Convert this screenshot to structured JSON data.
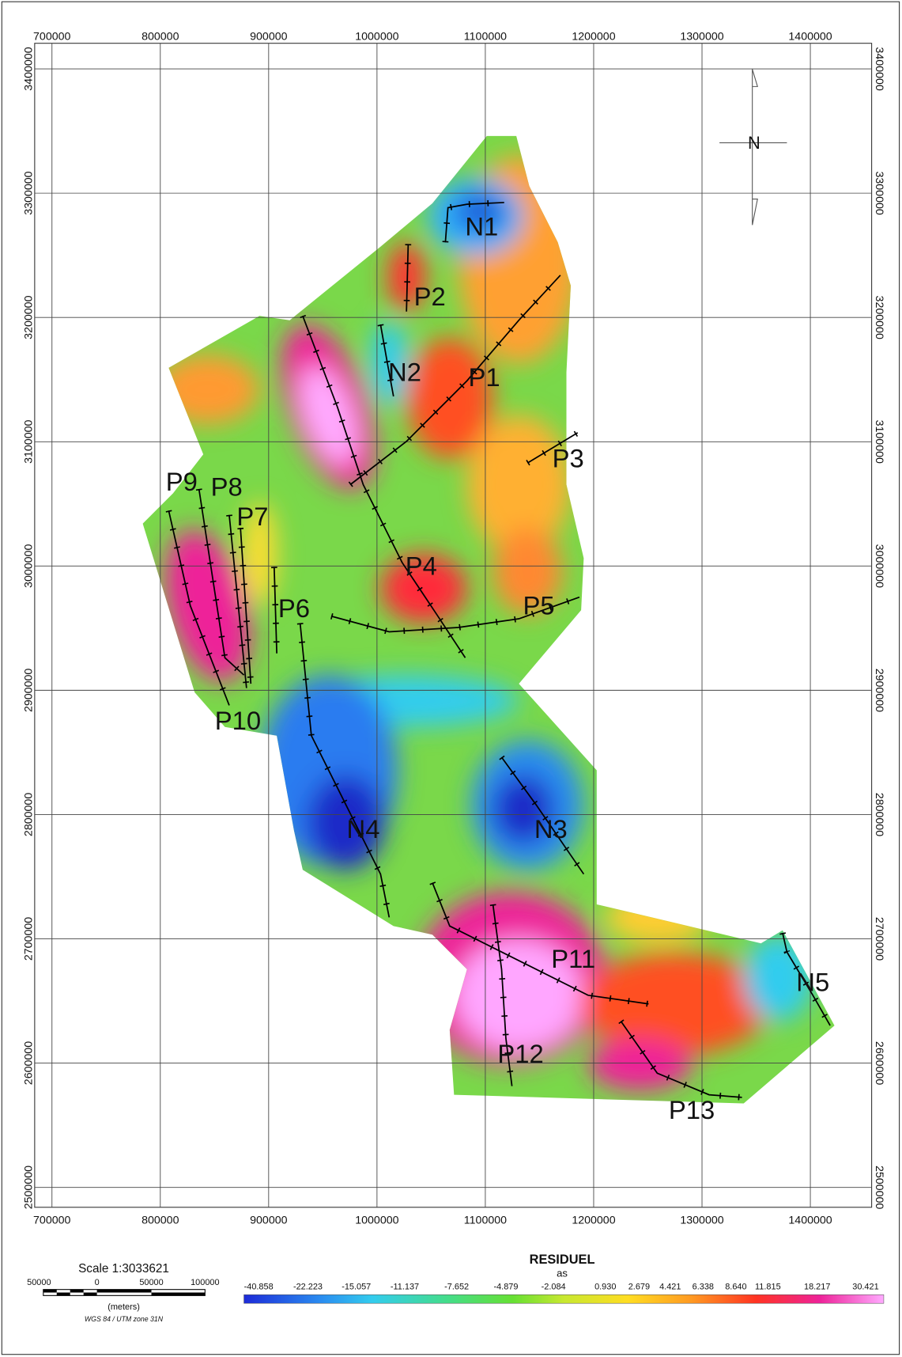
{
  "map": {
    "x_ticks": [
      700000,
      800000,
      900000,
      1000000,
      1100000,
      1200000,
      1300000,
      1400000
    ],
    "y_ticks": [
      2500000,
      2600000,
      2700000,
      2800000,
      2900000,
      3000000,
      3100000,
      3200000,
      3300000,
      3400000
    ],
    "structures": [
      {
        "label": "N1"
      },
      {
        "label": "P2"
      },
      {
        "label": "N2"
      },
      {
        "label": "P1"
      },
      {
        "label": "P3"
      },
      {
        "label": "P9"
      },
      {
        "label": "P8"
      },
      {
        "label": "P7"
      },
      {
        "label": "P4"
      },
      {
        "label": "P6"
      },
      {
        "label": "P5"
      },
      {
        "label": "P10"
      },
      {
        "label": "N4"
      },
      {
        "label": "N3"
      },
      {
        "label": "P11"
      },
      {
        "label": "N5"
      },
      {
        "label": "P12"
      },
      {
        "label": "P13"
      }
    ],
    "scale": {
      "title": "Scale 1:3033621",
      "labels": [
        "50000",
        "0",
        "50000",
        "100000"
      ],
      "unit": "(meters)",
      "projection": "WGS 84 / UTM zone 31N"
    },
    "legend": {
      "title": "RESIDUEL",
      "unit": "as",
      "labels": [
        "-40.858",
        "-22.223",
        "-15.057",
        "-11.137",
        "-7.652",
        "-4.879",
        "-2.084",
        "0.930",
        "2.679",
        "4.421",
        "6.338",
        "8.640",
        "11.815",
        "18.217",
        "30.421"
      ]
    }
  }
}
